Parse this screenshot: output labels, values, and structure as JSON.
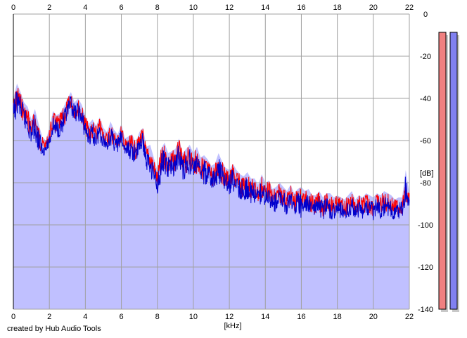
{
  "chart_data": {
    "type": "area",
    "x_unit_label": "[kHz]",
    "y_unit_label": "[dB]",
    "xlim": [
      0,
      22
    ],
    "ylim": [
      -140,
      0
    ],
    "x_ticks": [
      0,
      2,
      4,
      6,
      8,
      10,
      12,
      14,
      16,
      18,
      20,
      22
    ],
    "y_ticks": [
      0,
      -20,
      -40,
      -60,
      -80,
      -100,
      -120,
      -140
    ],
    "grid": true,
    "series": [
      {
        "color": "#ff0000",
        "x": [
          0.0,
          0.2,
          0.4,
          0.6,
          0.8,
          1.0,
          1.2,
          1.4,
          1.6,
          1.8,
          2.0,
          2.2,
          2.4,
          2.6,
          2.8,
          3.0,
          3.2,
          3.4,
          3.6,
          3.8,
          4.0,
          4.2,
          4.4,
          4.6,
          4.8,
          5.0,
          5.2,
          5.4,
          5.6,
          5.8,
          6.0,
          6.2,
          6.4,
          6.6,
          6.8,
          7.0,
          7.2,
          7.4,
          7.6,
          7.8,
          8.0,
          8.2,
          8.4,
          8.6,
          8.8,
          9.0,
          9.2,
          9.4,
          9.6,
          9.8,
          10.0,
          10.2,
          10.4,
          10.6,
          10.8,
          11.0,
          11.2,
          11.4,
          11.6,
          11.8,
          12.0,
          12.2,
          12.4,
          12.6,
          12.8,
          13.0,
          13.2,
          13.4,
          13.6,
          13.8,
          14.0,
          14.2,
          14.4,
          14.6,
          14.8,
          15.0,
          15.2,
          15.4,
          15.6,
          15.8,
          16.0,
          16.2,
          16.4,
          16.6,
          16.8,
          17.0,
          17.2,
          17.4,
          17.6,
          17.8,
          18.0,
          18.2,
          18.4,
          18.6,
          18.8,
          19.0,
          19.2,
          19.4,
          19.6,
          19.8,
          20.0,
          20.2,
          20.4,
          20.6,
          20.8,
          21.0,
          21.2,
          21.4,
          21.6,
          21.8,
          22.0
        ],
        "y": [
          -40,
          -33,
          -37,
          -42,
          -44,
          -50,
          -45,
          -52,
          -58,
          -60,
          -54,
          -46,
          -48,
          -47,
          -44,
          -40,
          -37,
          -42,
          -40,
          -43,
          -48,
          -52,
          -50,
          -53,
          -49,
          -54,
          -56,
          -51,
          -55,
          -57,
          -52,
          -59,
          -58,
          -57,
          -61,
          -56,
          -54,
          -63,
          -62,
          -68,
          -74,
          -64,
          -61,
          -66,
          -65,
          -64,
          -59,
          -66,
          -64,
          -62,
          -66,
          -63,
          -68,
          -67,
          -69,
          -72,
          -71,
          -66,
          -70,
          -73,
          -74,
          -71,
          -74,
          -76,
          -77,
          -75,
          -78,
          -78,
          -81,
          -76,
          -80,
          -79,
          -83,
          -82,
          -80,
          -82,
          -84,
          -81,
          -85,
          -83,
          -82,
          -84,
          -83,
          -86,
          -86,
          -84,
          -87,
          -85,
          -85,
          -87,
          -86,
          -87,
          -88,
          -86,
          -84,
          -88,
          -86,
          -87,
          -85,
          -86,
          -87,
          -85,
          -86,
          -84,
          -85,
          -86,
          -88,
          -87,
          -87,
          -80,
          -85
        ],
        "min_y": [
          -54,
          -45,
          -48,
          -53,
          -56,
          -60,
          -57,
          -64,
          -66,
          -64,
          -62,
          -56,
          -57,
          -56,
          -55,
          -49,
          -45,
          -50,
          -48,
          -53,
          -57,
          -61,
          -60,
          -62,
          -58,
          -62,
          -63,
          -61,
          -63,
          -64,
          -61,
          -66,
          -67,
          -68,
          -69,
          -64,
          -63,
          -73,
          -75,
          -78,
          -84,
          -78,
          -74,
          -77,
          -75,
          -75,
          -70,
          -77,
          -76,
          -74,
          -76,
          -76,
          -78,
          -79,
          -79,
          -82,
          -82,
          -78,
          -81,
          -82,
          -84,
          -82,
          -84,
          -86,
          -88,
          -86,
          -88,
          -88,
          -90,
          -88,
          -89,
          -88,
          -93,
          -92,
          -90,
          -91,
          -93,
          -91,
          -94,
          -92,
          -92,
          -93,
          -92,
          -95,
          -95,
          -94,
          -96,
          -94,
          -95,
          -96,
          -94,
          -95,
          -96,
          -95,
          -93,
          -96,
          -95,
          -95,
          -94,
          -95,
          -96,
          -94,
          -95,
          -94,
          -94,
          -95,
          -96,
          -95,
          -95,
          -90,
          -93
        ]
      },
      {
        "color": "#0000cc",
        "x": [
          0.0,
          0.2,
          0.4,
          0.6,
          0.8,
          1.0,
          1.2,
          1.4,
          1.6,
          1.8,
          2.0,
          2.2,
          2.4,
          2.6,
          2.8,
          3.0,
          3.2,
          3.4,
          3.6,
          3.8,
          4.0,
          4.2,
          4.4,
          4.6,
          4.8,
          5.0,
          5.2,
          5.4,
          5.6,
          5.8,
          6.0,
          6.2,
          6.4,
          6.6,
          6.8,
          7.0,
          7.2,
          7.4,
          7.6,
          7.8,
          8.0,
          8.2,
          8.4,
          8.6,
          8.8,
          9.0,
          9.2,
          9.4,
          9.6,
          9.8,
          10.0,
          10.2,
          10.4,
          10.6,
          10.8,
          11.0,
          11.2,
          11.4,
          11.6,
          11.8,
          12.0,
          12.2,
          12.4,
          12.6,
          12.8,
          13.0,
          13.2,
          13.4,
          13.6,
          13.8,
          14.0,
          14.2,
          14.4,
          14.6,
          14.8,
          15.0,
          15.2,
          15.4,
          15.6,
          15.8,
          16.0,
          16.2,
          16.4,
          16.6,
          16.8,
          17.0,
          17.2,
          17.4,
          17.6,
          17.8,
          18.0,
          18.2,
          18.4,
          18.6,
          18.8,
          19.0,
          19.2,
          19.4,
          19.6,
          19.8,
          20.0,
          20.2,
          20.4,
          20.6,
          20.8,
          21.0,
          21.2,
          21.4,
          21.6,
          21.8,
          22.0
        ],
        "y": [
          -42,
          -35,
          -39,
          -44,
          -46,
          -52,
          -47,
          -54,
          -60,
          -62,
          -56,
          -48,
          -50,
          -49,
          -46,
          -42,
          -38,
          -43,
          -41,
          -45,
          -50,
          -54,
          -52,
          -55,
          -51,
          -56,
          -58,
          -53,
          -57,
          -59,
          -54,
          -61,
          -60,
          -59,
          -63,
          -58,
          -56,
          -65,
          -64,
          -70,
          -76,
          -66,
          -63,
          -68,
          -67,
          -66,
          -61,
          -68,
          -66,
          -64,
          -68,
          -65,
          -70,
          -69,
          -71,
          -74,
          -73,
          -68,
          -72,
          -75,
          -76,
          -73,
          -76,
          -78,
          -79,
          -77,
          -80,
          -80,
          -83,
          -78,
          -82,
          -81,
          -85,
          -84,
          -82,
          -84,
          -86,
          -83,
          -87,
          -85,
          -84,
          -86,
          -85,
          -88,
          -88,
          -86,
          -89,
          -87,
          -87,
          -89,
          -88,
          -89,
          -90,
          -88,
          -86,
          -90,
          -88,
          -89,
          -87,
          -88,
          -89,
          -87,
          -88,
          -86,
          -87,
          -88,
          -90,
          -89,
          -89,
          -74,
          -88
        ],
        "min_y": [
          -56,
          -47,
          -50,
          -55,
          -58,
          -62,
          -59,
          -66,
          -68,
          -66,
          -64,
          -58,
          -59,
          -58,
          -57,
          -51,
          -47,
          -52,
          -50,
          -55,
          -59,
          -63,
          -62,
          -64,
          -60,
          -64,
          -65,
          -63,
          -65,
          -66,
          -63,
          -68,
          -69,
          -70,
          -71,
          -66,
          -65,
          -75,
          -77,
          -80,
          -86,
          -80,
          -76,
          -79,
          -77,
          -77,
          -72,
          -79,
          -78,
          -76,
          -78,
          -78,
          -80,
          -81,
          -81,
          -84,
          -84,
          -80,
          -83,
          -84,
          -86,
          -84,
          -86,
          -88,
          -90,
          -88,
          -90,
          -90,
          -92,
          -90,
          -91,
          -90,
          -95,
          -94,
          -92,
          -93,
          -97,
          -93,
          -96,
          -94,
          -100,
          -95,
          -94,
          -97,
          -97,
          -96,
          -98,
          -96,
          -97,
          -100,
          -96,
          -97,
          -98,
          -97,
          -95,
          -98,
          -97,
          -97,
          -96,
          -97,
          -98,
          -96,
          -97,
          -96,
          -96,
          -97,
          -98,
          -97,
          -97,
          -92,
          -95
        ]
      }
    ],
    "fill_color": "#c0c0ff",
    "level_meters": [
      {
        "color": "#f08080",
        "level": 1.0
      },
      {
        "color": "#8080f0",
        "level": 1.0
      }
    ]
  },
  "footer": {
    "credit": "created by Hub Audio Tools"
  }
}
